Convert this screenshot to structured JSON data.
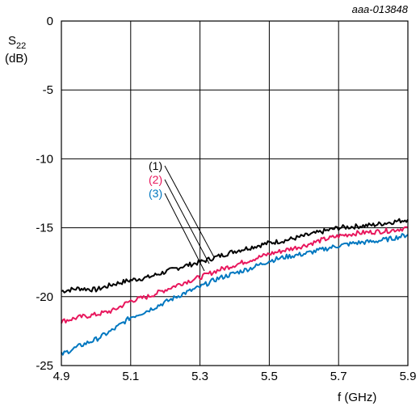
{
  "chart_data": {
    "type": "line",
    "figure_id": "aaa-013848",
    "ylabel_main": "S",
    "ylabel_sub": "22",
    "ylabel_unit": "(dB)",
    "xlabel": "f (GHz)",
    "xlim": [
      4.9,
      5.9
    ],
    "ylim": [
      -25,
      0
    ],
    "x_ticks": [
      "4.9",
      "5.1",
      "5.3",
      "5.5",
      "5.7",
      "5.9"
    ],
    "y_ticks": [
      "0",
      "-5",
      "-10",
      "-15",
      "-20",
      "-25"
    ],
    "grid": true,
    "series": [
      {
        "name": "(1)",
        "color": "#000000",
        "x": [
          4.9,
          4.95,
          5.0,
          5.05,
          5.1,
          5.15,
          5.2,
          5.25,
          5.3,
          5.35,
          5.4,
          5.45,
          5.5,
          5.55,
          5.6,
          5.65,
          5.7,
          5.75,
          5.8,
          5.85,
          5.9
        ],
        "values": [
          -19.6,
          -19.4,
          -19.5,
          -19.1,
          -18.8,
          -18.6,
          -18.2,
          -17.8,
          -17.5,
          -17.1,
          -16.7,
          -16.4,
          -16.1,
          -15.9,
          -15.6,
          -15.3,
          -15.0,
          -14.9,
          -14.8,
          -14.6,
          -14.4
        ]
      },
      {
        "name": "(2)",
        "color": "#e8175d",
        "x": [
          4.9,
          4.95,
          5.0,
          5.05,
          5.1,
          5.15,
          5.2,
          5.25,
          5.3,
          5.35,
          5.4,
          5.45,
          5.5,
          5.55,
          5.6,
          5.65,
          5.7,
          5.75,
          5.8,
          5.85,
          5.9
        ],
        "values": [
          -21.8,
          -21.5,
          -21.3,
          -21.0,
          -20.3,
          -20.0,
          -19.5,
          -19.0,
          -18.6,
          -18.1,
          -17.7,
          -17.3,
          -16.9,
          -16.6,
          -16.3,
          -15.9,
          -15.6,
          -15.4,
          -15.3,
          -15.2,
          -15.0
        ]
      },
      {
        "name": "(3)",
        "color": "#0077c0",
        "x": [
          4.9,
          4.95,
          5.0,
          5.05,
          5.1,
          5.15,
          5.2,
          5.25,
          5.3,
          5.35,
          5.4,
          5.45,
          5.5,
          5.55,
          5.6,
          5.65,
          5.7,
          5.75,
          5.8,
          5.85,
          5.9
        ],
        "values": [
          -24.2,
          -23.6,
          -23.1,
          -22.4,
          -21.5,
          -21.0,
          -20.4,
          -19.8,
          -19.3,
          -18.7,
          -18.3,
          -17.9,
          -17.4,
          -17.1,
          -16.9,
          -16.6,
          -16.3,
          -16.1,
          -16.0,
          -15.8,
          -15.5
        ]
      }
    ]
  }
}
